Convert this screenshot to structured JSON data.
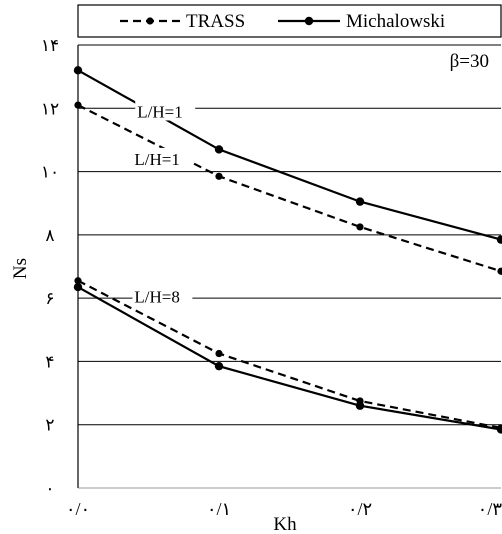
{
  "chart_data": {
    "type": "line",
    "xlabel": "Kh",
    "ylabel": "Ns",
    "xlim": [
      0,
      0.3
    ],
    "ylim": [
      0,
      14
    ],
    "x_ticks": [
      {
        "value": 0.0,
        "label": "۰/۰"
      },
      {
        "value": 0.1,
        "label": "۰/۱"
      },
      {
        "value": 0.2,
        "label": "۰/۲"
      },
      {
        "value": 0.3,
        "label": "۰/۳"
      }
    ],
    "y_ticks": [
      {
        "value": 0,
        "label": "۰"
      },
      {
        "value": 2,
        "label": "۲"
      },
      {
        "value": 4,
        "label": "۴"
      },
      {
        "value": 6,
        "label": "۶"
      },
      {
        "value": 8,
        "label": "۸"
      },
      {
        "value": 10,
        "label": "۱۰"
      },
      {
        "value": 12,
        "label": "۱۲"
      },
      {
        "value": 14,
        "label": "۱۴"
      }
    ],
    "grid": "horizontal",
    "legend_position": "top",
    "series": [
      {
        "name": "TRASS",
        "style": "dashed",
        "color": "#000000",
        "x": [
          0,
          0.1,
          0.2,
          0.3
        ],
        "values": [
          12.1,
          9.85,
          8.25,
          6.85
        ]
      },
      {
        "name": "Michalowski",
        "style": "solid",
        "color": "#000000",
        "x": [
          0,
          0.1,
          0.2,
          0.3
        ],
        "values": [
          13.2,
          10.7,
          9.05,
          7.85
        ]
      },
      {
        "name": "TRASS",
        "style": "dashed",
        "color": "#000000",
        "x": [
          0,
          0.1,
          0.2,
          0.3
        ],
        "values": [
          6.55,
          4.25,
          2.75,
          1.9
        ]
      },
      {
        "name": "Michalowski",
        "style": "solid",
        "color": "#000000",
        "x": [
          0,
          0.1,
          0.2,
          0.3
        ],
        "values": [
          6.35,
          3.85,
          2.6,
          1.85
        ]
      }
    ],
    "annotations": [
      {
        "text": "β=30",
        "x": 0.3,
        "y": 14,
        "anchor": "top-right"
      },
      {
        "text": "L/H=1",
        "x": 0.042,
        "y": 11.9,
        "anchor": "left"
      },
      {
        "text": "L/H=1",
        "x": 0.04,
        "y": 10.4,
        "anchor": "left"
      },
      {
        "text": "L/H=8",
        "x": 0.04,
        "y": 6.05,
        "anchor": "left"
      }
    ]
  }
}
